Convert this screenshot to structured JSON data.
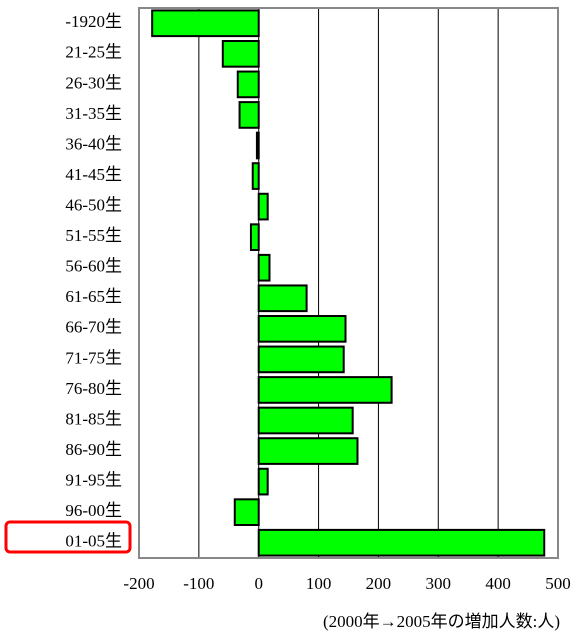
{
  "chart_data": {
    "type": "barh",
    "x_label": "(2000年→2005年の増加人数:人)",
    "categories": [
      "-1920生",
      "21-25生",
      "26-30生",
      "31-35生",
      "36-40生",
      "41-45生",
      "46-50生",
      "51-55生",
      "56-60生",
      "61-65生",
      "66-70生",
      "71-75生",
      "76-80生",
      "81-85生",
      "86-90生",
      "91-95生",
      "96-00生",
      "01-05生"
    ],
    "values": [
      -178,
      -60,
      -35,
      -32,
      -3,
      -10,
      15,
      -13,
      18,
      80,
      145,
      142,
      222,
      157,
      165,
      15,
      -40,
      477
    ],
    "color": "#00ff00",
    "xlim": [
      -200,
      500
    ],
    "xticks": [
      -200,
      -100,
      0,
      100,
      200,
      300,
      400,
      500
    ],
    "grid": true
  }
}
